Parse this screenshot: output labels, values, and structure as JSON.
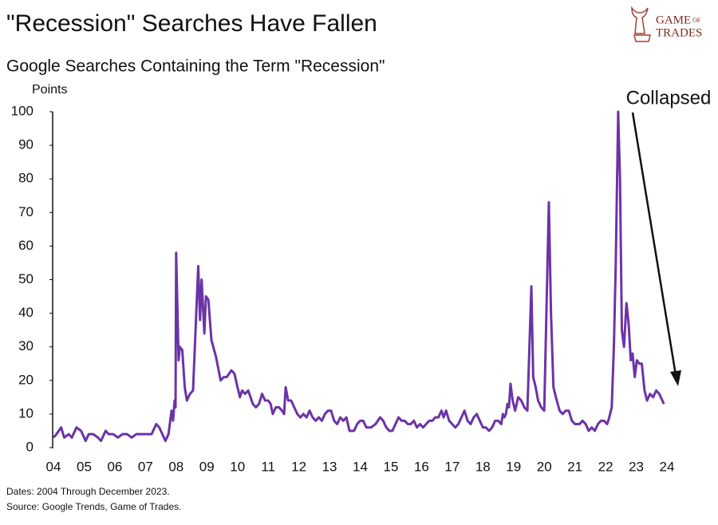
{
  "chart_data": {
    "type": "line",
    "title": "\"Recession\" Searches Have Fallen",
    "subtitle": "Google Searches Containing the Term \"Recession\"",
    "y_label": "Points",
    "annotation": "Collapsed",
    "notes": [
      "Dates: 2004 Through December 2023.",
      "Source: Google Trends, Game of Trades."
    ],
    "logo": {
      "top": "Game",
      "middle": "of",
      "bottom": "Trades"
    },
    "color": "#6b33a8",
    "xlim": [
      2004,
      2024
    ],
    "ylim": [
      0,
      100
    ],
    "yticks": [
      0,
      10,
      20,
      30,
      40,
      50,
      60,
      70,
      80,
      90,
      100
    ],
    "xticks": [
      {
        "value": 2004,
        "label": "04"
      },
      {
        "value": 2005,
        "label": "05"
      },
      {
        "value": 2006,
        "label": "06"
      },
      {
        "value": 2007,
        "label": "07"
      },
      {
        "value": 2008,
        "label": "08"
      },
      {
        "value": 2009,
        "label": "09"
      },
      {
        "value": 2010,
        "label": "10"
      },
      {
        "value": 2011,
        "label": "11"
      },
      {
        "value": 2012,
        "label": "12"
      },
      {
        "value": 2013,
        "label": "13"
      },
      {
        "value": 2014,
        "label": "14"
      },
      {
        "value": 2015,
        "label": "15"
      },
      {
        "value": 2016,
        "label": "16"
      },
      {
        "value": 2017,
        "label": "17"
      },
      {
        "value": 2018,
        "label": "18"
      },
      {
        "value": 2019,
        "label": "19"
      },
      {
        "value": 2020,
        "label": "20"
      },
      {
        "value": 2021,
        "label": "21"
      },
      {
        "value": 2022,
        "label": "22"
      },
      {
        "value": 2023,
        "label": "23"
      },
      {
        "value": 2024,
        "label": "24"
      }
    ],
    "x": [
      2004.0,
      2004.1,
      2004.25,
      2004.35,
      2004.5,
      2004.6,
      2004.75,
      2004.9,
      2005.05,
      2005.15,
      2005.3,
      2005.45,
      2005.55,
      2005.7,
      2005.8,
      2005.95,
      2006.1,
      2006.25,
      2006.4,
      2006.55,
      2006.7,
      2006.85,
      2007.0,
      2007.2,
      2007.35,
      2007.45,
      2007.55,
      2007.65,
      2007.75,
      2007.85,
      2007.9,
      2007.95,
      2007.98,
      2008.0,
      2008.08,
      2008.12,
      2008.2,
      2008.28,
      2008.35,
      2008.45,
      2008.55,
      2008.72,
      2008.78,
      2008.83,
      2008.92,
      2008.97,
      2009.05,
      2009.15,
      2009.3,
      2009.45,
      2009.55,
      2009.65,
      2009.8,
      2009.9,
      2010.0,
      2010.08,
      2010.15,
      2010.25,
      2010.35,
      2010.5,
      2010.6,
      2010.7,
      2010.8,
      2010.9,
      2011.0,
      2011.08,
      2011.15,
      2011.25,
      2011.35,
      2011.45,
      2011.52,
      2011.57,
      2011.65,
      2011.75,
      2011.85,
      2011.95,
      2012.05,
      2012.15,
      2012.25,
      2012.35,
      2012.45,
      2012.55,
      2012.65,
      2012.75,
      2012.85,
      2012.95,
      2013.05,
      2013.15,
      2013.25,
      2013.35,
      2013.45,
      2013.55,
      2013.65,
      2013.8,
      2013.9,
      2014.0,
      2014.1,
      2014.2,
      2014.35,
      2014.5,
      2014.65,
      2014.75,
      2014.85,
      2014.95,
      2015.05,
      2015.15,
      2015.25,
      2015.35,
      2015.45,
      2015.55,
      2015.65,
      2015.75,
      2015.85,
      2015.95,
      2016.05,
      2016.15,
      2016.25,
      2016.35,
      2016.45,
      2016.55,
      2016.65,
      2016.72,
      2016.8,
      2016.9,
      2017.0,
      2017.1,
      2017.2,
      2017.3,
      2017.4,
      2017.5,
      2017.6,
      2017.7,
      2017.8,
      2017.9,
      2018.0,
      2018.1,
      2018.2,
      2018.3,
      2018.4,
      2018.5,
      2018.6,
      2018.65,
      2018.7,
      2018.75,
      2018.8,
      2018.85,
      2018.9,
      2018.97,
      2019.05,
      2019.15,
      2019.25,
      2019.35,
      2019.45,
      2019.58,
      2019.64,
      2019.72,
      2019.8,
      2019.9,
      2020.0,
      2020.15,
      2020.22,
      2020.3,
      2020.38,
      2020.5,
      2020.6,
      2020.7,
      2020.8,
      2020.9,
      2021.0,
      2021.15,
      2021.25,
      2021.35,
      2021.45,
      2021.55,
      2021.65,
      2021.75,
      2021.85,
      2021.95,
      2022.05,
      2022.12,
      2022.2,
      2022.27,
      2022.33,
      2022.41,
      2022.47,
      2022.53,
      2022.6,
      2022.68,
      2022.75,
      2022.82,
      2022.88,
      2022.95,
      2023.02,
      2023.1,
      2023.18,
      2023.27,
      2023.35,
      2023.45,
      2023.55,
      2023.65,
      2023.75,
      2023.9
    ],
    "values": [
      3,
      4,
      6,
      3,
      4,
      3,
      6,
      5,
      2,
      4,
      4,
      3,
      2,
      5,
      4,
      4,
      3,
      4,
      4,
      3,
      4,
      4,
      4,
      4,
      7,
      6,
      4,
      2,
      4,
      11,
      8,
      14,
      12,
      58,
      26,
      30,
      29,
      18,
      14,
      16,
      17,
      54,
      38,
      50,
      34,
      45,
      44,
      32,
      27,
      20,
      21,
      21,
      23,
      22,
      18,
      15,
      17,
      16,
      17,
      13,
      12,
      13,
      16,
      14,
      14,
      13,
      10,
      12,
      12,
      11,
      10,
      18,
      14,
      14,
      12,
      10,
      9,
      10,
      9,
      11,
      9,
      8,
      9,
      8,
      10,
      11,
      11,
      8,
      7,
      9,
      8,
      9,
      5,
      5,
      7,
      8,
      8,
      6,
      6,
      7,
      9,
      8,
      6,
      5,
      5,
      7,
      9,
      8,
      8,
      7,
      7,
      8,
      6,
      7,
      6,
      7,
      8,
      8,
      9,
      9,
      11,
      9,
      11,
      8,
      7,
      6,
      7,
      9,
      11,
      8,
      7,
      9,
      10,
      8,
      6,
      6,
      5,
      6,
      8,
      8,
      7,
      10,
      9,
      10,
      13,
      12,
      19,
      14,
      11,
      15,
      14,
      12,
      11,
      48,
      21,
      18,
      14,
      12,
      11,
      73,
      40,
      18,
      15,
      11,
      10,
      11,
      11,
      8,
      7,
      7,
      8,
      7,
      5,
      6,
      5,
      7,
      8,
      8,
      7,
      9,
      12,
      30,
      54,
      100,
      80,
      35,
      30,
      43,
      37,
      26,
      28,
      21,
      26,
      25,
      25,
      17,
      14,
      16,
      15,
      17,
      16,
      13
    ]
  }
}
